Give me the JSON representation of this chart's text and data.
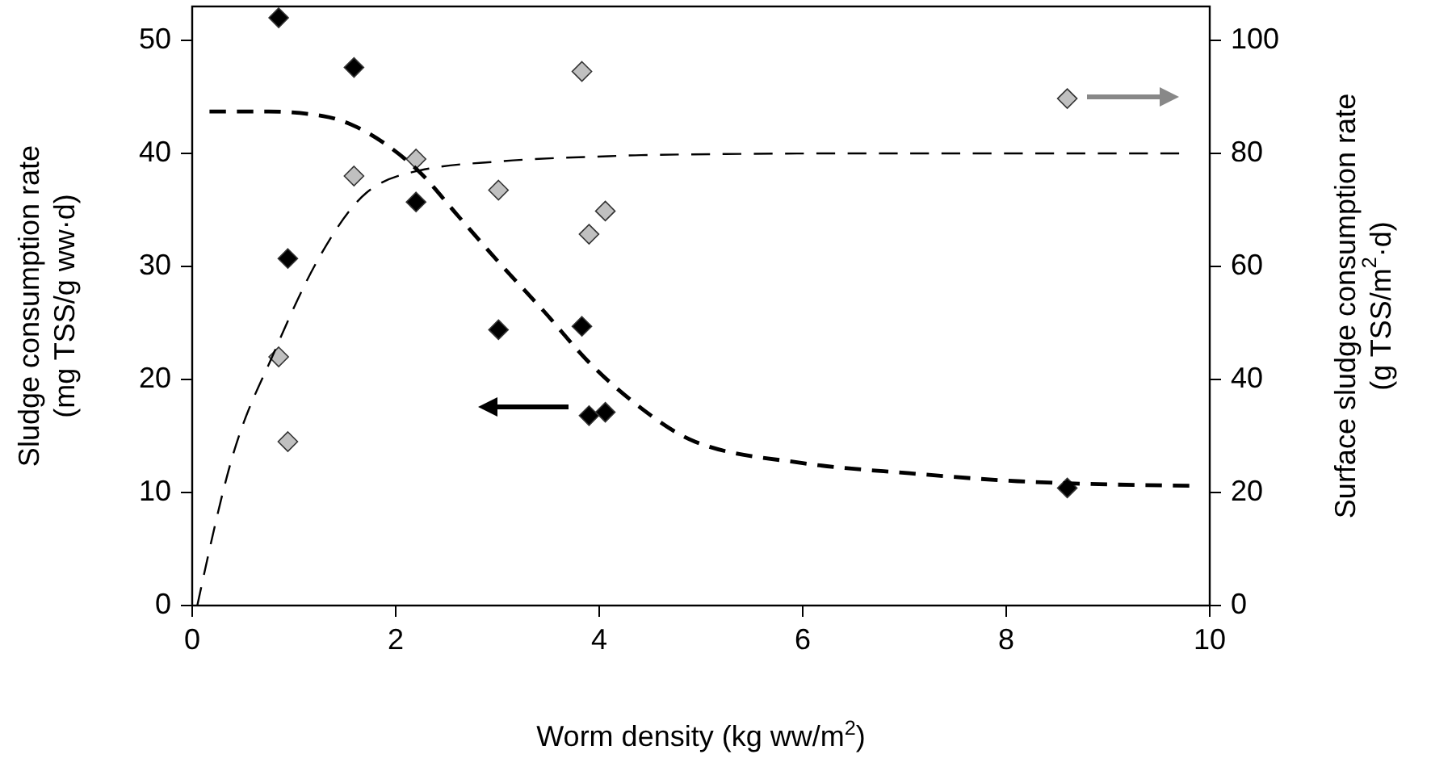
{
  "chart_data": {
    "type": "scatter",
    "xlabel": "Worm density (kg ww/m$^{2}$)",
    "ylabel": "Sludge consumption rate\n(mg TSS/g ww·d)",
    "y2label": "Surface sludge consumption rate\n(g TSS/m$^{2}$·d)",
    "xlim": [
      0,
      10
    ],
    "xticks": [
      0,
      2,
      4,
      6,
      8,
      10
    ],
    "ylim": [
      0,
      53
    ],
    "yticks": [
      0,
      10,
      20,
      30,
      40,
      50
    ],
    "y2lim": [
      0,
      106
    ],
    "y2ticks": [
      0,
      20,
      40,
      60,
      80,
      100
    ],
    "grid": false,
    "series": [
      {
        "color": "#000000",
        "marker": "diamond",
        "x": [
          0.85,
          1.59,
          0.94,
          2.2,
          3.01,
          3.83,
          3.9,
          4.06,
          8.6
        ],
        "values": [
          52.0,
          47.6,
          30.7,
          35.7,
          24.4,
          24.7,
          16.8,
          17.1,
          10.4
        ]
      },
      {
        "color": "#c0c0c0",
        "marker": "diamond",
        "axis": "y2",
        "x": [
          0.85,
          0.94,
          1.59,
          2.2,
          3.01,
          3.83,
          3.9,
          4.06,
          8.6
        ],
        "values": [
          44,
          29,
          76,
          79,
          73.5,
          94.5,
          65.7,
          69.8,
          89.7
        ]
      },
      {
        "type": "line",
        "color": "#000000",
        "marker": "none",
        "line_style": "dashed",
        "x": [
          0.17,
          0.75,
          1.29,
          1.6,
          1.92,
          2.24,
          2.61,
          3.03,
          3.46,
          3.88,
          4.35,
          4.94,
          6.0,
          7.05,
          8.11,
          9.8
        ],
        "values": [
          43.7,
          43.7,
          43.3,
          42.4,
          40.7,
          38.3,
          34.5,
          30.2,
          26,
          21.7,
          17.9,
          14.5,
          12.6,
          11.7,
          11.0,
          10.6
        ]
      },
      {
        "type": "line",
        "color": "#000000",
        "marker": "none",
        "line_style": "dashed",
        "axis": "y2",
        "x": [
          0.05,
          0.39,
          0.81,
          1.23,
          1.71,
          2.24,
          3.03,
          4.09,
          4.41,
          6.52,
          9.7
        ],
        "values": [
          0,
          26,
          45,
          61,
          73,
          77,
          78.6,
          79.5,
          79.7,
          80,
          80
        ]
      }
    ]
  }
}
